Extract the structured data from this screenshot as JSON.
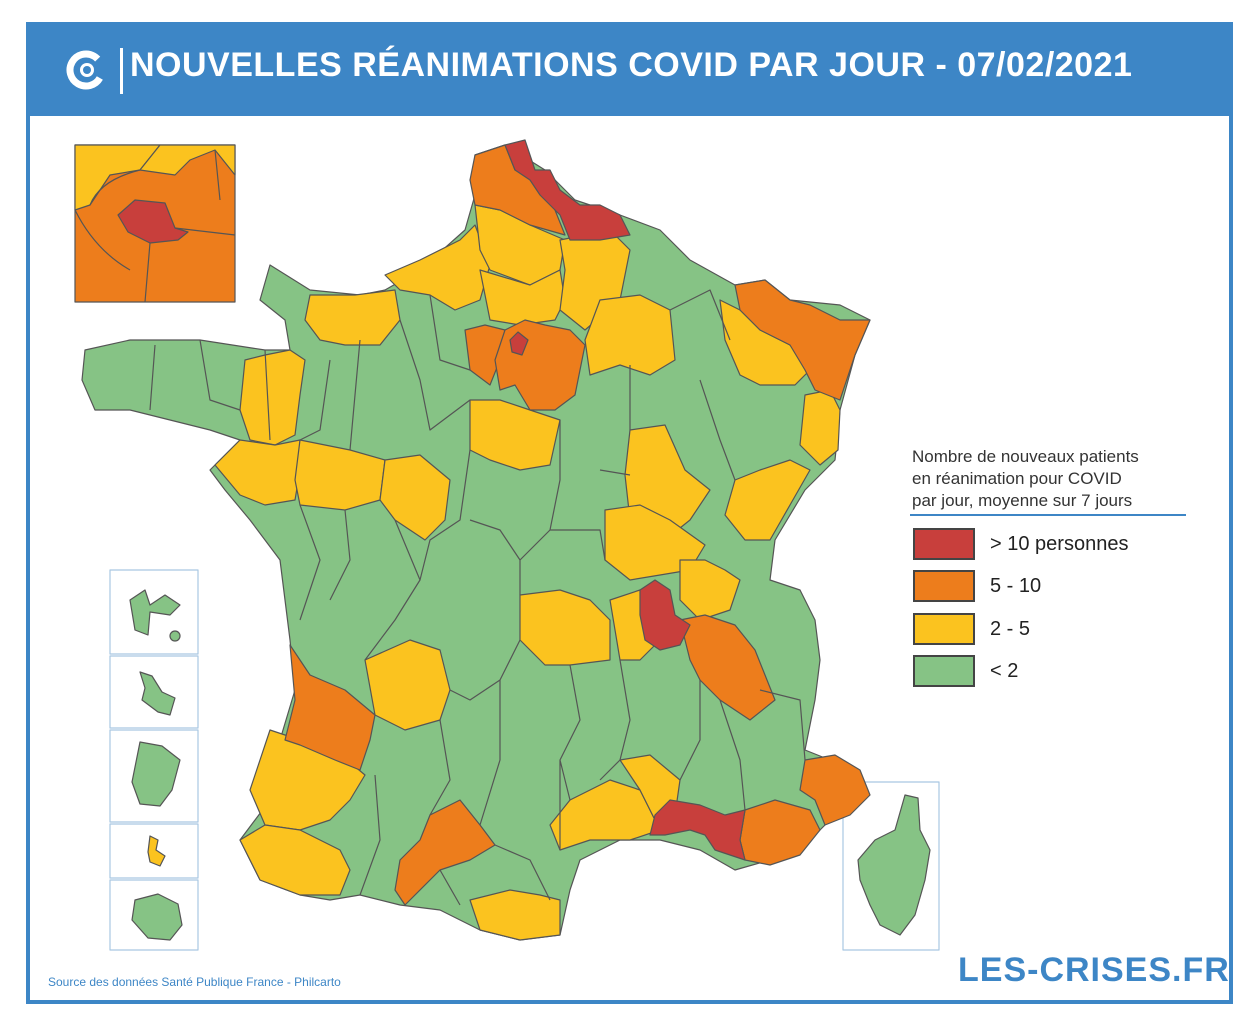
{
  "header": {
    "title": "NOUVELLES RÉANIMATIONS COVID PAR JOUR - 07/02/2021",
    "logo_icon": "les-crises-logo-icon"
  },
  "colors": {
    "header_bg": "#3d86c6",
    "red": "#c83f3c",
    "orange": "#ed7d1c",
    "yellow": "#fbc31f",
    "green": "#86c385",
    "border": "#555555"
  },
  "legend": {
    "title_lines": [
      "Nombre de nouveaux patients",
      "en réanimation pour COVID",
      "par jour, moyenne sur 7 jours"
    ],
    "items": [
      {
        "label": "> 10 personnes",
        "color": "#c83f3c"
      },
      {
        "label": "5 - 10",
        "color": "#ed7d1c"
      },
      {
        "label": "2 - 5",
        "color": "#fbc31f"
      },
      {
        "label": "< 2",
        "color": "#86c385"
      }
    ]
  },
  "insets": [
    "paris-region",
    "guadeloupe",
    "martinique",
    "guyane",
    "mayotte",
    "la-reunion",
    "corse"
  ],
  "footer": {
    "source": "Source des données Santé Publique France - Philcarto",
    "brand": "LES-CRISES.FR"
  }
}
